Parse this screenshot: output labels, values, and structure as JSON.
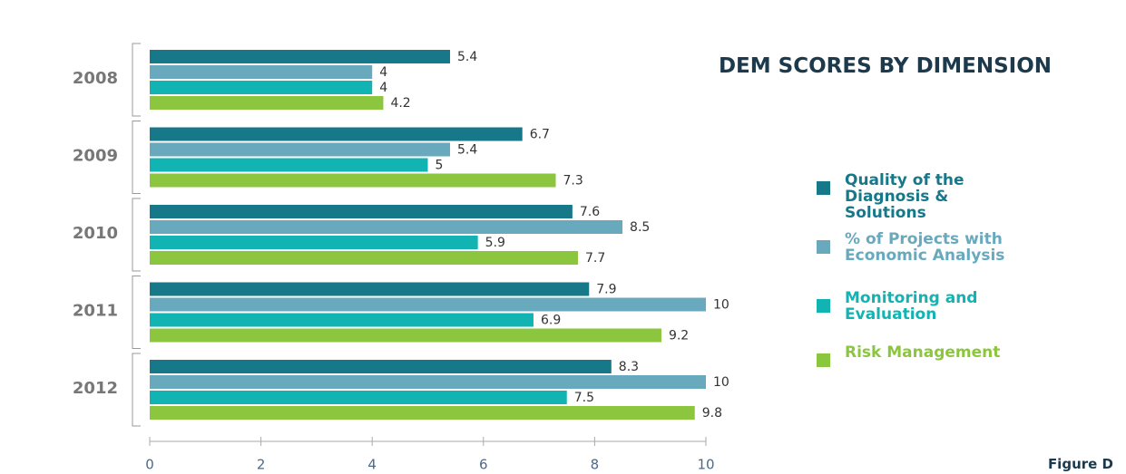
{
  "chart_data": {
    "type": "hbar",
    "title": "DEM SCORES BY DIMENSION",
    "footnote": "Figure D",
    "categories": [
      "2008",
      "2009",
      "2010",
      "2011",
      "2012"
    ],
    "series": [
      {
        "name": "Quality of the Diagnosis & Solutions",
        "color": "#17788a",
        "values": [
          5.4,
          6.7,
          7.6,
          7.9,
          8.3
        ]
      },
      {
        "name": "% of Projects with Economic Analysis",
        "color": "#68a9bd",
        "values": [
          4,
          5.4,
          8.5,
          10,
          10
        ]
      },
      {
        "name": "Monitoring and Evaluation",
        "color": "#12b3b3",
        "values": [
          4,
          5,
          5.9,
          6.9,
          7.5
        ]
      },
      {
        "name": "Risk Management",
        "color": "#8cc63f",
        "values": [
          4.2,
          7.3,
          7.7,
          9.2,
          9.8
        ]
      }
    ],
    "xlim": [
      0,
      10
    ],
    "xticks": [
      0,
      2,
      4,
      6,
      8,
      10
    ],
    "legend": "right"
  }
}
